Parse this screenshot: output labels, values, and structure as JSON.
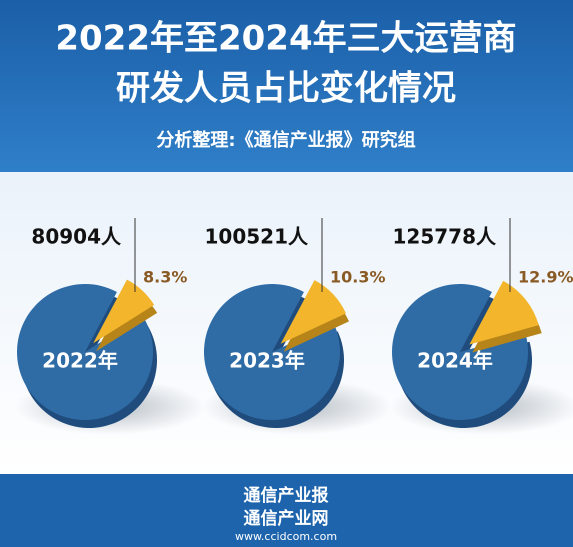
{
  "header": {
    "title_line1": "2022年至2024年三大运营商",
    "title_line2": "研发人员占比变化情况",
    "source": "分析整理:《通信产业报》研究组"
  },
  "chart_data": [
    {
      "type": "pie",
      "title": "2022年",
      "annotation": "80904人",
      "values": [
        8.3
      ],
      "value_labels": [
        "8.3%"
      ],
      "color": "#f2b52b",
      "base_color": "#2f6ca6"
    },
    {
      "type": "pie",
      "title": "2023年",
      "annotation": "100521人",
      "values": [
        10.3
      ],
      "value_labels": [
        "10.3%"
      ],
      "color": "#f2b52b",
      "base_color": "#2f6ca6"
    },
    {
      "type": "pie",
      "title": "2024年",
      "annotation": "125778人",
      "values": [
        12.9
      ],
      "value_labels": [
        "12.9%"
      ],
      "color": "#f2b52b",
      "base_color": "#2f6ca6"
    }
  ],
  "footer": {
    "line1": "通信产业报",
    "line2": "通信产业网",
    "url": "www.ccidcom.com"
  }
}
